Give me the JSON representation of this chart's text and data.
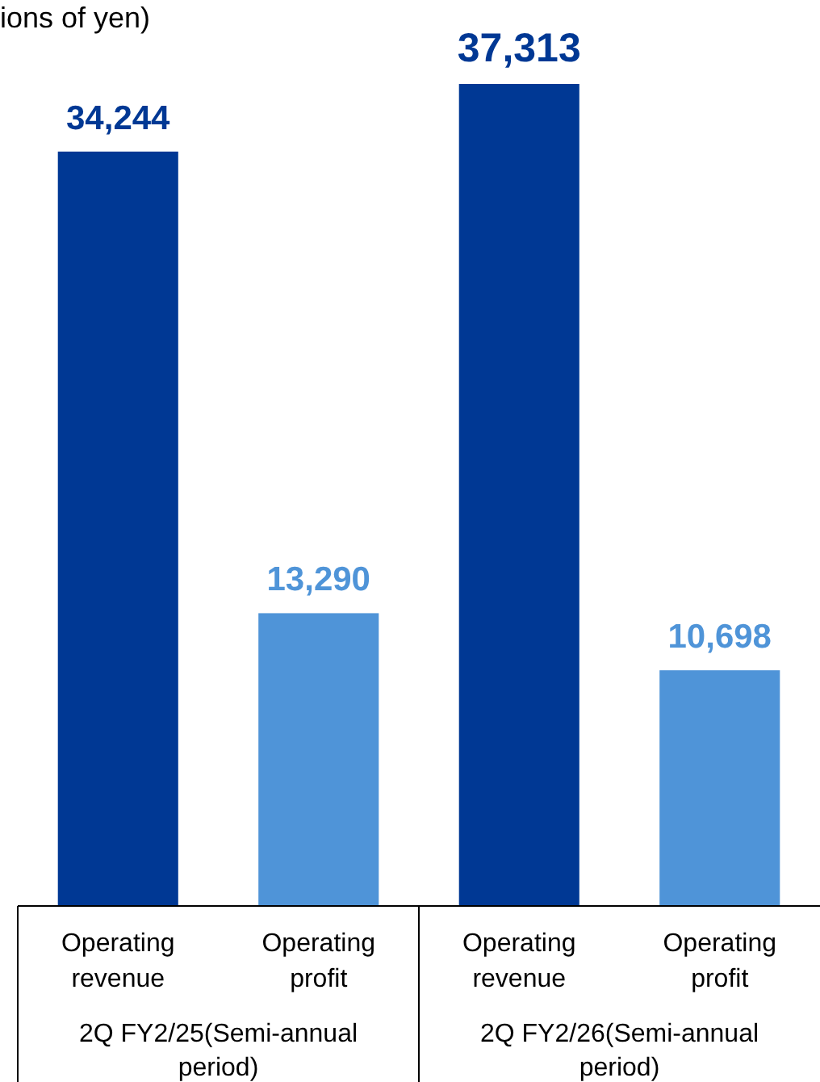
{
  "chart_data": {
    "type": "bar",
    "title": "ions of yen)",
    "categories": [
      "Operating revenue",
      "Operating profit",
      "Operating revenue",
      "Operating profit"
    ],
    "values": [
      34244,
      13290,
      37313,
      10698
    ],
    "colors": [
      "#003894",
      "#4f94d8",
      "#003894",
      "#4f94d8"
    ],
    "value_labels": [
      "34,244",
      "13,290",
      "37,313",
      "10,698"
    ],
    "annotations": [
      "2Q FY2/25(Semi-annual period)",
      "2Q FY2/26(Semi-annual period)"
    ]
  }
}
